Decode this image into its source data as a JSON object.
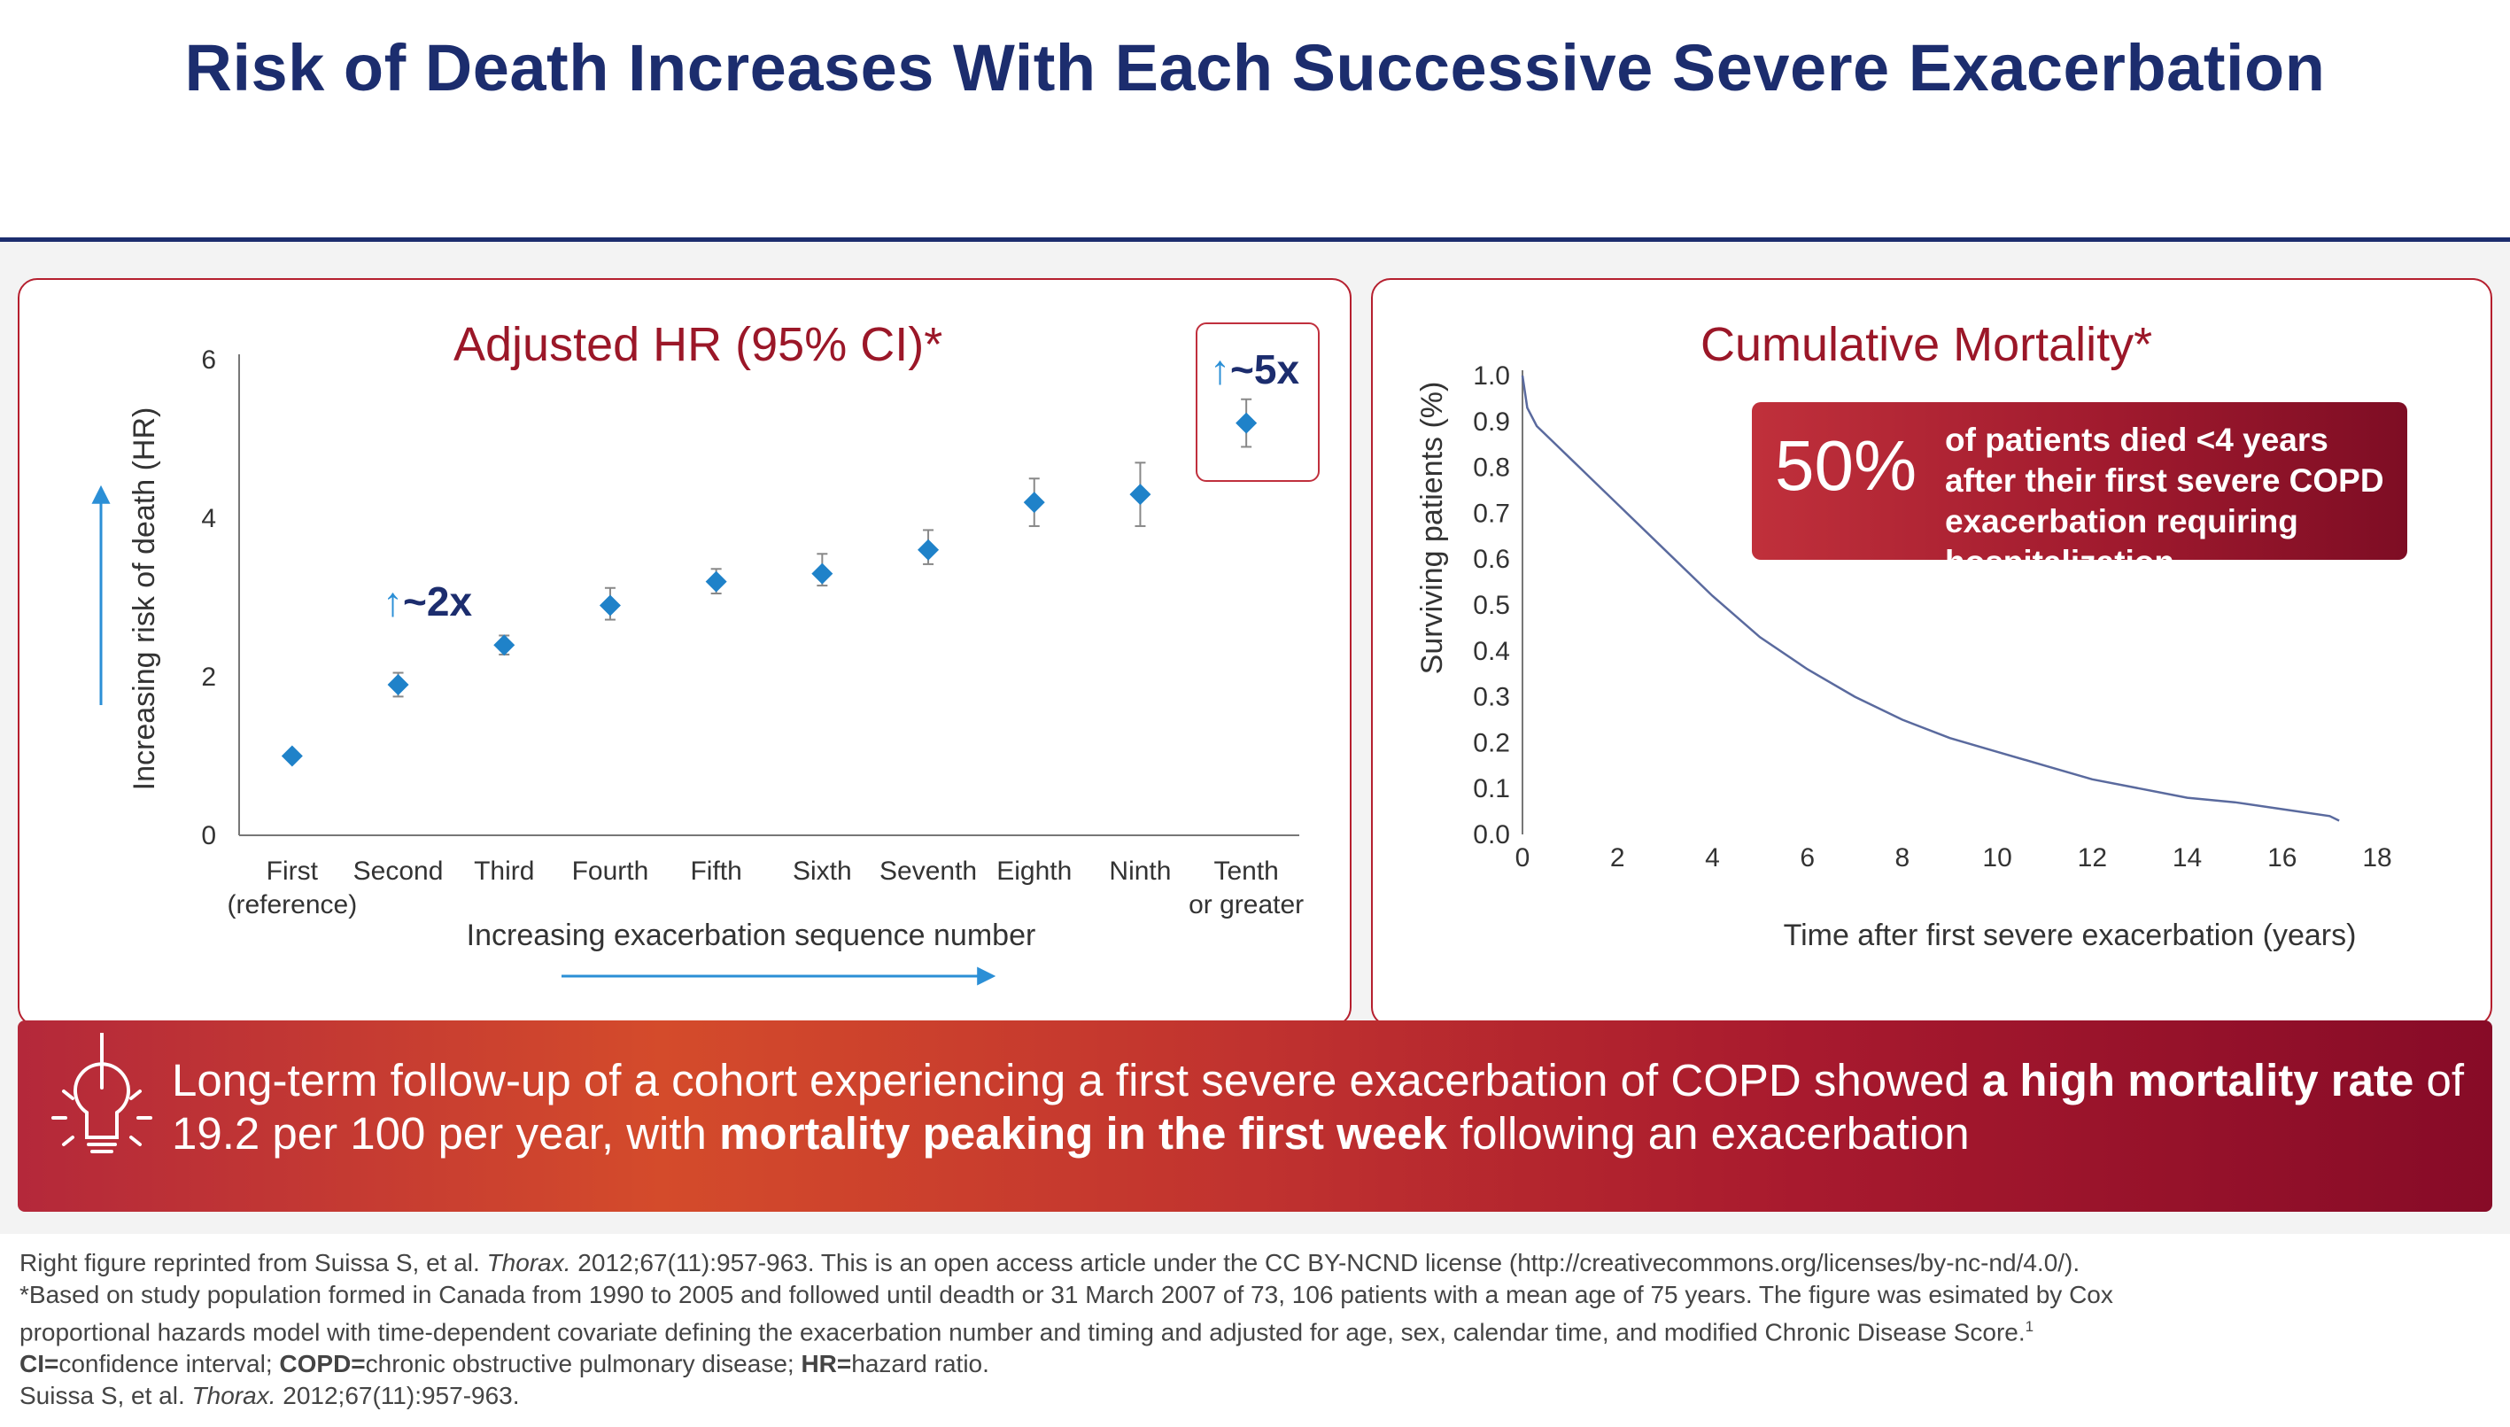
{
  "header": {
    "title": "Risk of Death Increases With Each Successive Severe Exacerbation"
  },
  "left_panel": {
    "title": "Adjusted HR (95% CI)*",
    "annotation_2x": "~2x",
    "annotation_5x": "~5x",
    "arrow_glyph": "↑"
  },
  "right_panel": {
    "title": "Cumulative Mortality*",
    "stat_big": "50%",
    "stat_text": "of patients died <4 years after their first severe COPD exacerbation requiring hospitalization"
  },
  "banner": {
    "icon": "lightbulb-icon",
    "text_1": "Long-term follow-up of a cohort experiencing a first severe exacerbation of COPD showed ",
    "bold_1": "a high mortality rate",
    "text_2": " of 19.2 per 100 per year, with ",
    "bold_2": "mortality peaking in the first week",
    "text_3": " following an exacerbation"
  },
  "footnotes": {
    "line1_a": "Right figure reprinted from Suissa S, et al. ",
    "line1_journal": "Thorax.",
    "line1_b": " 2012;67(11):957-963. This is an open access article under the CC BY-NCND license (http://creativecommons.org/licenses/by-nc-nd/4.0/).",
    "line2": "*Based on study population formed in Canada from 1990 to 2005 and followed until deadth or 31 March 2007 of 73, 106 patients with a mean age of 75 years. The figure was esimated by Cox",
    "line3": "proportional hazards model with time-dependent covariate defining the exacerbation number and timing and adjusted for age, sex, calendar time, and modified Chronic Disease Score.",
    "line3_sup": "1",
    "line4_b1": "CI=",
    "line4_t1": "confidence interval; ",
    "line4_b2": "COPD=",
    "line4_t2": "chronic obstructive pulmonary disease; ",
    "line4_b3": "HR=",
    "line4_t3": "hazard ratio.",
    "line5_a": "Suissa S, et al. ",
    "line5_journal": "Thorax.",
    "line5_b": " 2012;67(11):957-963."
  },
  "colors": {
    "navy": "#1c2d6e",
    "crimson": "#9b1728",
    "marker": "#1f82c9",
    "arrow": "#2b8fd6",
    "curve": "#5a6a9e"
  },
  "chart_data": [
    {
      "type": "scatter",
      "title": "Adjusted HR (95% CI)*",
      "xlabel": "Increasing exacerbation sequence number",
      "ylabel": "Increasing risk of death (HR)",
      "categories": [
        "First (reference)",
        "Second",
        "Third",
        "Fourth",
        "Fifth",
        "Sixth",
        "Seventh",
        "Eighth",
        "Ninth",
        "Tenth or greater"
      ],
      "tick_labels": [
        [
          "First",
          "(reference)"
        ],
        [
          "Second"
        ],
        [
          "Third"
        ],
        [
          "Fourth"
        ],
        [
          "Fifth"
        ],
        [
          "Sixth"
        ],
        [
          "Seventh"
        ],
        [
          "Eighth"
        ],
        [
          "Ninth"
        ],
        [
          "Tenth",
          "or greater"
        ]
      ],
      "values": [
        1.0,
        1.9,
        2.4,
        2.9,
        3.2,
        3.3,
        3.6,
        4.2,
        4.3,
        5.2
      ],
      "ci_low": [
        1.0,
        1.75,
        2.28,
        2.72,
        3.05,
        3.15,
        3.42,
        3.9,
        3.9,
        4.9
      ],
      "ci_high": [
        1.0,
        2.05,
        2.52,
        3.12,
        3.36,
        3.55,
        3.85,
        4.5,
        4.7,
        5.5
      ],
      "ylim": [
        0,
        6
      ],
      "yticks": [
        0,
        2,
        4,
        6
      ],
      "grid": false,
      "legend": "none"
    },
    {
      "type": "line",
      "title": "Cumulative Mortality*",
      "xlabel": "Time after first severe exacerbation (years)",
      "ylabel": "Surviving patients (%)",
      "x": [
        0,
        0.1,
        0.3,
        0.6,
        1,
        1.5,
        2,
        3,
        4,
        5,
        6,
        7,
        8,
        9,
        10,
        11,
        12,
        13,
        14,
        15,
        16,
        17,
        17.2
      ],
      "y": [
        1.0,
        0.93,
        0.89,
        0.86,
        0.82,
        0.77,
        0.72,
        0.62,
        0.52,
        0.43,
        0.36,
        0.3,
        0.25,
        0.21,
        0.18,
        0.15,
        0.12,
        0.1,
        0.08,
        0.07,
        0.055,
        0.04,
        0.03
      ],
      "xlim": [
        0,
        18
      ],
      "ylim": [
        0,
        1
      ],
      "xticks": [
        0,
        2,
        4,
        6,
        8,
        10,
        12,
        14,
        16,
        18
      ],
      "yticks": [
        "0.0",
        "0.1",
        "0.2",
        "0.3",
        "0.4",
        "0.5",
        "0.6",
        "0.7",
        "0.8",
        "0.9",
        "1.0"
      ],
      "grid": false,
      "legend": "none"
    }
  ]
}
